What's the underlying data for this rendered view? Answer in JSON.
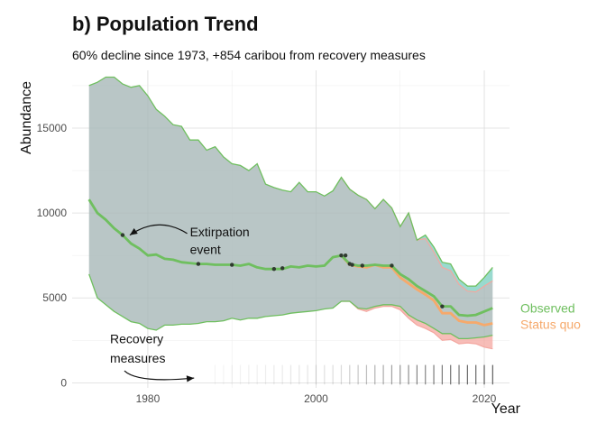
{
  "chart_data": {
    "type": "line",
    "title": "b) Population Trend",
    "subtitle": "60% decline since 1973, +854 caribou from recovery measures",
    "xlabel": "Year",
    "ylabel": "Abundance",
    "xlim": [
      1971,
      2023
    ],
    "ylim": [
      -300,
      18400
    ],
    "x_ticks": [
      1980,
      2000,
      2020
    ],
    "y_ticks": [
      0,
      5000,
      10000,
      15000
    ],
    "y_tick_labels": [
      "0",
      "5000",
      "10000",
      "15000"
    ],
    "grid": true,
    "colors": {
      "observed": "#6fbf5f",
      "status_quo": "#f6a96b",
      "ribbon_common": "#a8b8b8",
      "ribbon_observed_only": "#8fe0d2",
      "ribbon_status_quo": "#f4a7a0",
      "point": "#2f3a2f",
      "rug": "#444444"
    },
    "series": [
      {
        "name": "Observed",
        "x": [
          1973,
          1974,
          1975,
          1976,
          1977,
          1978,
          1979,
          1980,
          1981,
          1982,
          1983,
          1984,
          1985,
          1986,
          1987,
          1988,
          1989,
          1990,
          1991,
          1992,
          1993,
          1994,
          1995,
          1996,
          1997,
          1998,
          1999,
          2000,
          2001,
          2002,
          2003,
          2004,
          2005,
          2006,
          2007,
          2008,
          2009,
          2010,
          2011,
          2012,
          2013,
          2014,
          2015,
          2016,
          2017,
          2018,
          2019,
          2020,
          2021
        ],
        "values": [
          10800,
          10000,
          9600,
          9100,
          8700,
          8200,
          7900,
          7500,
          7550,
          7300,
          7250,
          7100,
          7050,
          7000,
          7000,
          6950,
          6950,
          6950,
          6900,
          7000,
          6800,
          6700,
          6700,
          6700,
          6850,
          6800,
          6900,
          6850,
          6900,
          7400,
          7500,
          7000,
          6900,
          6900,
          6950,
          6900,
          6900,
          6400,
          6100,
          5700,
          5400,
          5100,
          4500,
          4500,
          4000,
          3950,
          4000,
          4200,
          4400
        ],
        "upper": [
          17500,
          17700,
          18000,
          18000,
          17600,
          17400,
          17500,
          16900,
          16100,
          15700,
          15200,
          15100,
          14300,
          14300,
          13700,
          13900,
          13300,
          12900,
          12800,
          12500,
          12900,
          11700,
          11500,
          11350,
          11250,
          11800,
          11250,
          11250,
          11000,
          11300,
          12100,
          11400,
          11050,
          10800,
          10250,
          10800,
          10300,
          9200,
          10000,
          8400,
          8700,
          8000,
          7100,
          7000,
          6100,
          5700,
          5700,
          6200,
          6800
        ],
        "lower": [
          6400,
          5000,
          4600,
          4200,
          3900,
          3600,
          3500,
          3200,
          3100,
          3400,
          3400,
          3450,
          3450,
          3500,
          3600,
          3600,
          3650,
          3800,
          3700,
          3800,
          3800,
          3900,
          3950,
          4000,
          4100,
          4150,
          4200,
          4250,
          4350,
          4400,
          4800,
          4800,
          4400,
          4350,
          4500,
          4600,
          4600,
          4500,
          4000,
          3700,
          3500,
          3200,
          2900,
          2900,
          2600,
          2600,
          2650,
          2700,
          2800
        ]
      },
      {
        "name": "Status quo",
        "x": [
          2003,
          2004,
          2005,
          2006,
          2007,
          2008,
          2009,
          2010,
          2011,
          2012,
          2013,
          2014,
          2015,
          2016,
          2017,
          2018,
          2019,
          2020,
          2021
        ],
        "values": [
          7500,
          6950,
          6850,
          6800,
          6950,
          6800,
          6800,
          6200,
          5850,
          5500,
          5200,
          4850,
          4100,
          4100,
          3650,
          3550,
          3550,
          3400,
          3500
        ],
        "upper": [
          12100,
          11400,
          11050,
          10800,
          10250,
          10800,
          10300,
          9200,
          10000,
          8400,
          8500,
          7700,
          6800,
          6600,
          5800,
          5400,
          5350,
          5700,
          6000
        ],
        "lower": [
          4800,
          4800,
          4350,
          4200,
          4400,
          4500,
          4500,
          4300,
          3800,
          3400,
          3200,
          2950,
          2500,
          2550,
          2300,
          2350,
          2300,
          2100,
          2000
        ]
      }
    ],
    "points": {
      "x": [
        1977,
        1986,
        1990,
        1995,
        1996,
        2003,
        2003.5,
        2004,
        2004.3,
        2005.5,
        2009,
        2015
      ],
      "y": [
        8700,
        7000,
        6950,
        6700,
        6750,
        7500,
        7500,
        7000,
        6950,
        6900,
        6900,
        4500
      ]
    },
    "rug_years": [
      1988,
      1989,
      1990,
      1991,
      1992,
      1993,
      1994,
      1995,
      1996,
      1997,
      1998,
      1999,
      2000,
      2001,
      2002,
      2003,
      2004,
      2005,
      2006,
      2007,
      2008,
      2009,
      2010,
      2011,
      2012,
      2013,
      2014,
      2015,
      2016,
      2017,
      2018,
      2019,
      2020,
      2021
    ],
    "rug_opacity": [
      0.06,
      0.06,
      0.07,
      0.07,
      0.08,
      0.08,
      0.09,
      0.1,
      0.1,
      0.12,
      0.13,
      0.14,
      0.15,
      0.16,
      0.18,
      0.2,
      0.25,
      0.3,
      0.35,
      0.4,
      0.45,
      0.5,
      0.55,
      0.6,
      0.65,
      0.65,
      0.7,
      0.7,
      0.75,
      0.75,
      0.8,
      0.8,
      0.85,
      0.85
    ],
    "annotations": [
      {
        "lines": [
          "Extirpation",
          "event"
        ],
        "text_x": 1985,
        "text_y": [
          8900,
          7850
        ],
        "arrow_to": [
          1977,
          8700
        ]
      },
      {
        "lines": [
          "Recovery",
          "measures"
        ],
        "text_x": 1975.5,
        "text_y": [
          2600,
          1450
        ],
        "arrow_to": [
          1985.5,
          280
        ]
      }
    ],
    "legend": {
      "placement": "right",
      "labels": [
        "Observed",
        "Status quo"
      ]
    }
  }
}
